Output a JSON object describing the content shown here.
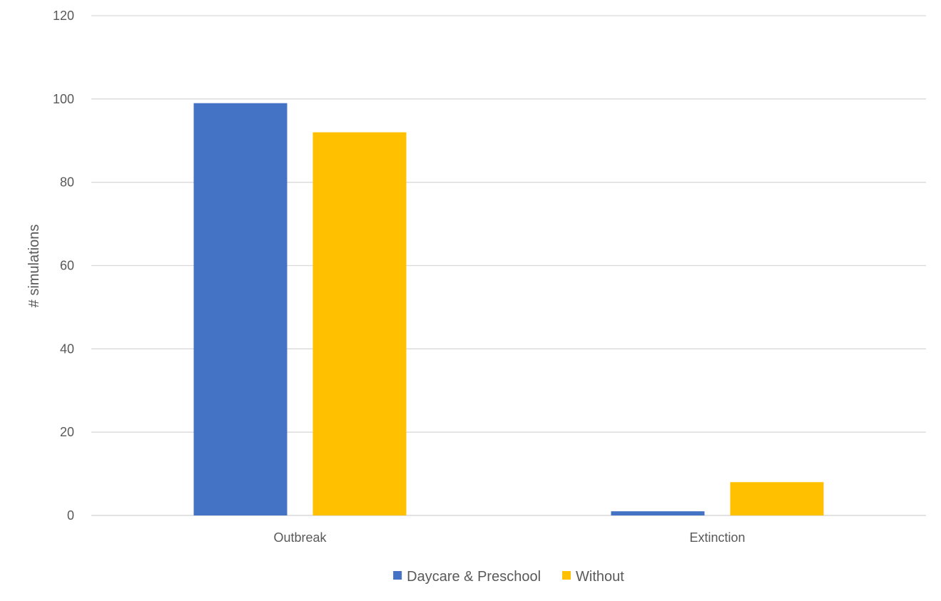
{
  "chart_data": {
    "type": "bar",
    "title": "",
    "xlabel": "",
    "ylabel": "# simulations",
    "ylim": [
      0,
      120
    ],
    "yticks": [
      0,
      20,
      40,
      60,
      80,
      100,
      120
    ],
    "categories": [
      "Outbreak",
      "Extinction"
    ],
    "series": [
      {
        "name": "Daycare & Preschool",
        "color": "#4472C4",
        "values": [
          99,
          1
        ]
      },
      {
        "name": "Without",
        "color": "#FFC000",
        "values": [
          92,
          8
        ]
      }
    ],
    "grid": true,
    "legend_position": "bottom"
  }
}
